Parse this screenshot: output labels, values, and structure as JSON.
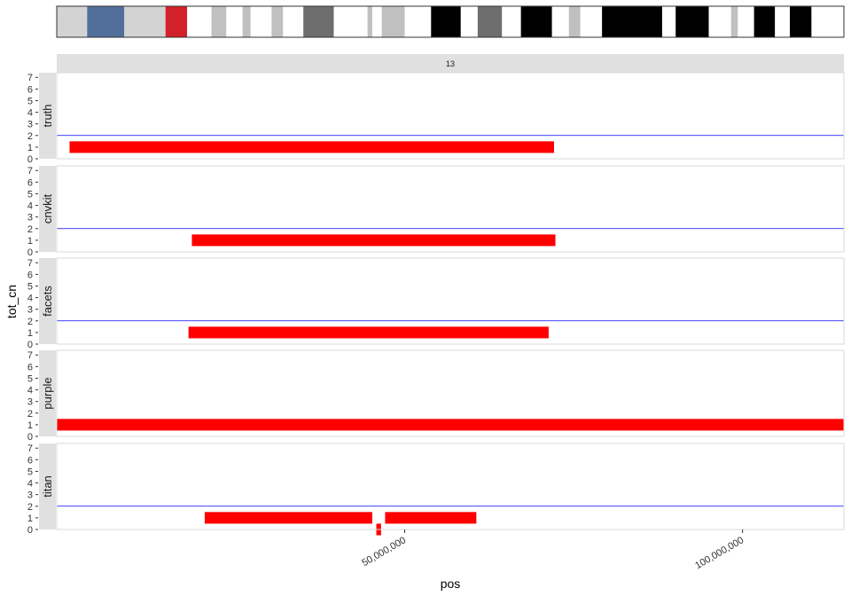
{
  "chart_data": {
    "type": "segment",
    "facet_title": "13",
    "xlabel": "pos",
    "ylabel": "tot_cn",
    "xlim": [
      -1500000,
      115000000
    ],
    "ylim": [
      0,
      7.4
    ],
    "y_ticks": [
      0,
      1,
      2,
      3,
      4,
      5,
      6,
      7
    ],
    "x_ticks": [
      {
        "value": 50000000,
        "label": "50,000,000"
      },
      {
        "value": 100000000,
        "label": "100,000,000"
      }
    ],
    "reference_line": {
      "y": 2,
      "color": "#0000ff"
    },
    "segment_color": "#ff0000",
    "panels": [
      {
        "name": "truth",
        "show_reference": true,
        "segments": [
          {
            "start": 400000,
            "end": 72100000,
            "cn": 1
          }
        ]
      },
      {
        "name": "cnvkit",
        "show_reference": true,
        "segments": [
          {
            "start": 18500000,
            "end": 72300000,
            "cn": 1
          }
        ]
      },
      {
        "name": "facets",
        "show_reference": true,
        "segments": [
          {
            "start": 18000000,
            "end": 71300000,
            "cn": 1
          }
        ]
      },
      {
        "name": "purple",
        "show_reference": false,
        "segments": [
          {
            "start": -1500000,
            "end": 115000000,
            "cn": 1
          }
        ]
      },
      {
        "name": "titan",
        "show_reference": true,
        "segments": [
          {
            "start": 20400000,
            "end": 45200000,
            "cn": 1
          },
          {
            "start": 45800000,
            "end": 46500000,
            "cn": 0
          },
          {
            "start": 47100000,
            "end": 60600000,
            "cn": 1
          }
        ]
      }
    ],
    "ideogram": {
      "colors": {
        "gneg": "#ffffff",
        "gpos25": "#c0c0c0",
        "gpos50": "#6e6e6e",
        "gpos100": "#000000",
        "acen": "#d22128",
        "gvar": "#d3d3d3",
        "stalk": "#526f9b"
      },
      "bands": [
        {
          "start": -1500000,
          "end": 3000000,
          "stain": "gvar"
        },
        {
          "start": 3000000,
          "end": 8500000,
          "stain": "stalk"
        },
        {
          "start": 8500000,
          "end": 14600000,
          "stain": "gvar"
        },
        {
          "start": 14600000,
          "end": 17800000,
          "stain": "acen"
        },
        {
          "start": 17800000,
          "end": 21400000,
          "stain": "gneg"
        },
        {
          "start": 21400000,
          "end": 23600000,
          "stain": "gpos25"
        },
        {
          "start": 23600000,
          "end": 26000000,
          "stain": "gneg"
        },
        {
          "start": 26000000,
          "end": 27200000,
          "stain": "gpos25"
        },
        {
          "start": 27200000,
          "end": 30300000,
          "stain": "gneg"
        },
        {
          "start": 30300000,
          "end": 32000000,
          "stain": "gpos25"
        },
        {
          "start": 32000000,
          "end": 35000000,
          "stain": "gneg"
        },
        {
          "start": 35000000,
          "end": 39500000,
          "stain": "gpos50"
        },
        {
          "start": 39500000,
          "end": 44500000,
          "stain": "gneg"
        },
        {
          "start": 44500000,
          "end": 45200000,
          "stain": "gpos25"
        },
        {
          "start": 45200000,
          "end": 46600000,
          "stain": "gneg"
        },
        {
          "start": 46600000,
          "end": 50000000,
          "stain": "gpos25"
        },
        {
          "start": 50000000,
          "end": 53900000,
          "stain": "gneg"
        },
        {
          "start": 53900000,
          "end": 58300000,
          "stain": "gpos100"
        },
        {
          "start": 58300000,
          "end": 60800000,
          "stain": "gneg"
        },
        {
          "start": 60800000,
          "end": 64400000,
          "stain": "gpos50"
        },
        {
          "start": 64400000,
          "end": 67200000,
          "stain": "gneg"
        },
        {
          "start": 67200000,
          "end": 71800000,
          "stain": "gpos100"
        },
        {
          "start": 71800000,
          "end": 74300000,
          "stain": "gneg"
        },
        {
          "start": 74300000,
          "end": 76000000,
          "stain": "gpos25"
        },
        {
          "start": 76000000,
          "end": 79200000,
          "stain": "gneg"
        },
        {
          "start": 79200000,
          "end": 88100000,
          "stain": "gpos100"
        },
        {
          "start": 88100000,
          "end": 90100000,
          "stain": "gneg"
        },
        {
          "start": 90100000,
          "end": 95000000,
          "stain": "gpos100"
        },
        {
          "start": 95000000,
          "end": 98300000,
          "stain": "gneg"
        },
        {
          "start": 98300000,
          "end": 99300000,
          "stain": "gpos25"
        },
        {
          "start": 99300000,
          "end": 101700000,
          "stain": "gneg"
        },
        {
          "start": 101700000,
          "end": 104800000,
          "stain": "gpos100"
        },
        {
          "start": 104800000,
          "end": 107000000,
          "stain": "gneg"
        },
        {
          "start": 107000000,
          "end": 110200000,
          "stain": "gpos100"
        },
        {
          "start": 110200000,
          "end": 115000000,
          "stain": "gneg"
        }
      ]
    }
  }
}
